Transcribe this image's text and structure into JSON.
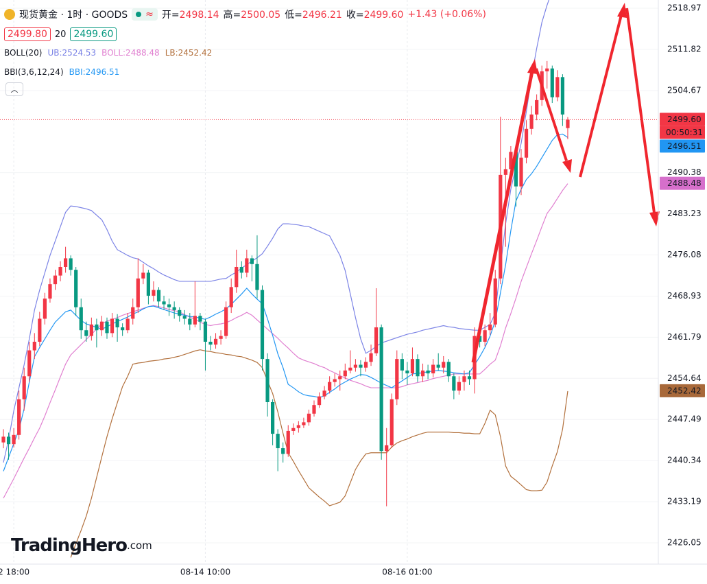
{
  "header": {
    "symbol": "现货黄金 · 1时 · GOODS",
    "ohlc": [
      {
        "label": "开=",
        "value": "2498.14"
      },
      {
        "label": "高=",
        "value": "2500.05"
      },
      {
        "label": "低=",
        "value": "2496.21"
      },
      {
        "label": "收=",
        "value": "2499.60"
      }
    ],
    "change": "+1.43 (+0.06%)",
    "bid": "2499.80",
    "spread": "20",
    "ask": "2499.60",
    "boll_params": "BOLL(20)",
    "bbi_params": "BBI(3,6,12,24)"
  },
  "logo": {
    "brand": "TradingHero",
    "suffix": ".com"
  },
  "chart_data": {
    "type": "candlestick",
    "up_color": "#f23645",
    "down_color": "#089981",
    "ylim": [
      2422.35,
      2520.4
    ],
    "yticks": [
      2518.97,
      2511.82,
      2504.67,
      2490.38,
      2483.23,
      2476.08,
      2468.93,
      2461.79,
      2454.64,
      2447.49,
      2440.34,
      2433.19,
      2426.05
    ],
    "grid": true,
    "categories": [
      null,
      null,
      "2 18:00",
      null,
      null,
      null,
      null,
      null,
      null,
      null,
      null,
      null,
      null,
      null,
      null,
      null,
      null,
      null,
      null,
      null,
      null,
      null,
      null,
      null,
      null,
      null,
      null,
      null,
      null,
      null,
      null,
      null,
      null,
      null,
      null,
      null,
      null,
      null,
      null,
      "08-14 10:00",
      null,
      null,
      null,
      null,
      null,
      null,
      null,
      null,
      null,
      null,
      null,
      null,
      null,
      null,
      null,
      null,
      null,
      null,
      null,
      null,
      null,
      null,
      null,
      null,
      null,
      null,
      null,
      null,
      null,
      null,
      null,
      null,
      null,
      null,
      null,
      null,
      null,
      null,
      "08-16 01:00",
      null,
      null,
      null,
      null,
      null,
      null,
      null,
      null,
      null,
      null,
      null,
      null,
      null,
      null,
      null,
      null,
      null,
      null,
      null,
      null,
      null,
      null,
      null,
      null,
      null,
      null,
      null,
      null,
      null,
      null,
      null
    ],
    "candles": [
      [
        2443.5,
        2445.8,
        2442.5,
        2444.5
      ],
      [
        2444.5,
        2445.2,
        2440.5,
        2443.2
      ],
      [
        2443.2,
        2446,
        2442.6,
        2444.8
      ],
      [
        2444.8,
        2452.5,
        2444,
        2451
      ],
      [
        2451,
        2456.5,
        2449,
        2455
      ],
      [
        2455,
        2461,
        2454,
        2459.5
      ],
      [
        2459.5,
        2462.5,
        2458,
        2461
      ],
      [
        2461,
        2466.2,
        2460.2,
        2465
      ],
      [
        2465,
        2469.5,
        2464,
        2468.5
      ],
      [
        2468.5,
        2472,
        2467.8,
        2471
      ],
      [
        2471,
        2473.5,
        2470,
        2472.5
      ],
      [
        2472.5,
        2475,
        2471.5,
        2474
      ],
      [
        2474,
        2477.5,
        2473,
        2475.5
      ],
      [
        2475.5,
        2476,
        2472.5,
        2473.5
      ],
      [
        2473.5,
        2474,
        2465.5,
        2467
      ],
      [
        2467,
        2468.5,
        2461.5,
        2463
      ],
      [
        2463,
        2464.5,
        2461,
        2462
      ],
      [
        2462,
        2465.2,
        2461.2,
        2464
      ],
      [
        2464,
        2465,
        2460,
        2463
      ],
      [
        2463,
        2465.5,
        2462,
        2464.5
      ],
      [
        2464.5,
        2465.2,
        2461.5,
        2462.5
      ],
      [
        2462.5,
        2466,
        2461.8,
        2465
      ],
      [
        2465,
        2465.8,
        2461,
        2463.5
      ],
      [
        2463.5,
        2464.2,
        2462,
        2463
      ],
      [
        2463,
        2466,
        2462.5,
        2465
      ],
      [
        2465,
        2468.5,
        2464,
        2467
      ],
      [
        2467,
        2475.5,
        2466,
        2472
      ],
      [
        2472,
        2474.5,
        2471,
        2473
      ],
      [
        2473,
        2473.5,
        2467.5,
        2469
      ],
      [
        2469,
        2471.5,
        2468,
        2470
      ],
      [
        2470,
        2470.5,
        2467,
        2468
      ],
      [
        2468,
        2469,
        2466.5,
        2467.5
      ],
      [
        2467.5,
        2468.5,
        2465.5,
        2467
      ],
      [
        2467,
        2468,
        2465,
        2466.5
      ],
      [
        2466.5,
        2467,
        2464.5,
        2465.5
      ],
      [
        2465.5,
        2466.5,
        2464,
        2465
      ],
      [
        2465,
        2466,
        2463,
        2464
      ],
      [
        2464,
        2471.5,
        2463.5,
        2465.5
      ],
      [
        2465.5,
        2466,
        2463,
        2464.5
      ],
      [
        2464.5,
        2465,
        2456,
        2461
      ],
      [
        2461,
        2462,
        2459.5,
        2460.5
      ],
      [
        2460.5,
        2462.5,
        2459.8,
        2461.5
      ],
      [
        2461.5,
        2463,
        2460.5,
        2462
      ],
      [
        2462,
        2468,
        2461.5,
        2467
      ],
      [
        2467,
        2472,
        2466,
        2470.5
      ],
      [
        2470.5,
        2477,
        2469.5,
        2474
      ],
      [
        2474,
        2475,
        2472,
        2473
      ],
      [
        2473,
        2477,
        2472.2,
        2475.5
      ],
      [
        2475.5,
        2476,
        2471.5,
        2474.5
      ],
      [
        2474.5,
        2479.5,
        2468.5,
        2470
      ],
      [
        2470,
        2470.8,
        2456,
        2458
      ],
      [
        2458,
        2459,
        2448,
        2450.5
      ],
      [
        2450.5,
        2451,
        2443,
        2445
      ],
      [
        2445,
        2445.8,
        2438.5,
        2442.5
      ],
      [
        2442.5,
        2443.5,
        2440,
        2441.5
      ],
      [
        2441.5,
        2446.5,
        2441,
        2445.5
      ],
      [
        2445.5,
        2446.8,
        2444.8,
        2446
      ],
      [
        2446,
        2447.2,
        2445.2,
        2446.5
      ],
      [
        2446.5,
        2447.8,
        2446,
        2447
      ],
      [
        2447,
        2449.2,
        2446.4,
        2448.5
      ],
      [
        2448.5,
        2450.8,
        2448,
        2450
      ],
      [
        2450,
        2452.2,
        2449.5,
        2451.5
      ],
      [
        2451.5,
        2453.3,
        2451,
        2452.5
      ],
      [
        2452.5,
        2455,
        2452,
        2454
      ],
      [
        2454,
        2455.5,
        2453.2,
        2454.5
      ],
      [
        2454.5,
        2456,
        2452.5,
        2455
      ],
      [
        2455,
        2457.2,
        2454.5,
        2456
      ],
      [
        2456,
        2459.5,
        2455.5,
        2456.5
      ],
      [
        2456.5,
        2458,
        2455.8,
        2457
      ],
      [
        2457,
        2457.8,
        2455,
        2456.5
      ],
      [
        2456.5,
        2458.3,
        2455.8,
        2457.5
      ],
      [
        2457.5,
        2460.5,
        2456.8,
        2459
      ],
      [
        2459,
        2470.3,
        2458.5,
        2463.5
      ],
      [
        2463.5,
        2464,
        2440.5,
        2442
      ],
      [
        2442,
        2446,
        2432.4,
        2443
      ],
      [
        2443,
        2452,
        2442.5,
        2451
      ],
      [
        2451,
        2459.5,
        2450,
        2458
      ],
      [
        2458,
        2459,
        2454.5,
        2456
      ],
      [
        2456,
        2457.5,
        2453.5,
        2455.5
      ],
      [
        2455.5,
        2460,
        2455,
        2458
      ],
      [
        2458,
        2458.8,
        2454,
        2455
      ],
      [
        2455,
        2457.2,
        2454,
        2456
      ],
      [
        2456,
        2457,
        2454.5,
        2455.5
      ],
      [
        2455.5,
        2458,
        2454.8,
        2457
      ],
      [
        2457,
        2459,
        2456,
        2456.5
      ],
      [
        2456.5,
        2458.5,
        2455.5,
        2457.5
      ],
      [
        2457.5,
        2458,
        2454,
        2455
      ],
      [
        2455,
        2455.5,
        2451,
        2452.5
      ],
      [
        2452.5,
        2455,
        2451.8,
        2454
      ],
      [
        2454,
        2456,
        2452.5,
        2455
      ],
      [
        2455,
        2456,
        2453.5,
        2454.5
      ],
      [
        2454.5,
        2463.5,
        2452,
        2462
      ],
      [
        2462,
        2464,
        2460,
        2461
      ],
      [
        2461,
        2464,
        2460.2,
        2463
      ],
      [
        2463,
        2466,
        2462.2,
        2464
      ],
      [
        2464,
        2473.5,
        2463.5,
        2472
      ],
      [
        2472,
        2500.1,
        2471,
        2490
      ],
      [
        2490,
        2493,
        2477.5,
        2491
      ],
      [
        2491,
        2495,
        2488.5,
        2494
      ],
      [
        2494,
        2495,
        2484.5,
        2488
      ],
      [
        2488,
        2494.5,
        2486.5,
        2493
      ],
      [
        2493,
        2499.5,
        2492,
        2498
      ],
      [
        2498,
        2502,
        2497,
        2500.5
      ],
      [
        2500.5,
        2504,
        2499.5,
        2503
      ],
      [
        2503,
        2509,
        2502,
        2508
      ],
      [
        2508,
        2509.8,
        2505,
        2508.5
      ],
      [
        2508.5,
        2509,
        2502.5,
        2503.5
      ],
      [
        2503.5,
        2508.2,
        2502.8,
        2507
      ],
      [
        2507,
        2507.5,
        2498.5,
        2500.5
      ],
      [
        2498.14,
        2500.05,
        2496.21,
        2499.6
      ]
    ],
    "series": [
      {
        "label": "UB:2524.53",
        "color": "#7b83e6",
        "values": [
          2440,
          2444,
          2449,
          2453,
          2457,
          2461.5,
          2466.5,
          2470,
          2473,
          2476,
          2478.5,
          2481,
          2483.5,
          2484.6,
          2484.5,
          2484.3,
          2484.1,
          2483.8,
          2483,
          2482.2,
          2480.5,
          2478.5,
          2477,
          2476.5,
          2476,
          2475.6,
          2475.4,
          2474.8,
          2474.2,
          2473.7,
          2473.1,
          2472.6,
          2472.2,
          2471.8,
          2471.5,
          2471.5,
          2471.5,
          2471.5,
          2471.5,
          2471.5,
          2471.5,
          2471.7,
          2471.9,
          2472,
          2472.6,
          2473.1,
          2473.8,
          2474.4,
          2475,
          2475.6,
          2476.3,
          2477.6,
          2479,
          2480.6,
          2481.5,
          2481.5,
          2481.4,
          2481.3,
          2481.1,
          2481,
          2480.6,
          2480.2,
          2479.8,
          2479.4,
          2477.7,
          2476,
          2473.4,
          2469.3,
          2465.2,
          2461.5,
          2459,
          2459.5,
          2460.2,
          2460.8,
          2461.1,
          2461.4,
          2461.7,
          2462,
          2462.3,
          2462.5,
          2462.7,
          2463,
          2463.2,
          2463.4,
          2463.6,
          2463.8,
          2463.6,
          2463.5,
          2463.3,
          2463.2,
          2463.1,
          2463,
          2463,
          2463.5,
          2464,
          2466,
          2474,
          2481.5,
          2487.5,
          2491.5,
          2495.5,
          2501,
          2507,
          2512,
          2516.5,
          2519.5,
          2522,
          2523.3,
          2524,
          2524.53
        ]
      },
      {
        "label": "BOLL:2488.48",
        "color": "#e07fd0",
        "values": [
          2433.8,
          2435.5,
          2437.2,
          2439,
          2440.8,
          2442.5,
          2444.3,
          2446,
          2448.1,
          2450.4,
          2452.6,
          2454.9,
          2457.1,
          2458.7,
          2459.6,
          2460.5,
          2461.4,
          2462.3,
          2463.2,
          2464.1,
          2464.6,
          2464.9,
          2465.2,
          2465.6,
          2465.9,
          2466.2,
          2466.5,
          2466.8,
          2467.1,
          2467.3,
          2467.1,
          2466.9,
          2466.6,
          2466.4,
          2466.2,
          2465.7,
          2465.3,
          2464.9,
          2464.4,
          2464,
          2463.8,
          2464,
          2464.1,
          2464.3,
          2464.7,
          2465.2,
          2465.6,
          2466.1,
          2465.6,
          2464.8,
          2464,
          2463.2,
          2462.4,
          2461.6,
          2460.7,
          2459.9,
          2459,
          2458.2,
          2457.8,
          2457.5,
          2457.2,
          2456.8,
          2456.5,
          2456,
          2455.6,
          2455.1,
          2454.7,
          2454.3,
          2454,
          2453.7,
          2453.3,
          2453,
          2453,
          2453,
          2453,
          2453,
          2453,
          2453.2,
          2453.5,
          2453.7,
          2453.9,
          2454.1,
          2454.3,
          2454.6,
          2454.8,
          2455,
          2455.2,
          2455.4,
          2455.4,
          2455.4,
          2455.4,
          2455.4,
          2455.4,
          2456.2,
          2457.1,
          2457.8,
          2460.3,
          2463.4,
          2465.9,
          2468.6,
          2471.5,
          2473.9,
          2476.3,
          2478.6,
          2481,
          2483.3,
          2484.5,
          2485.9,
          2487.3,
          2488.48
        ]
      },
      {
        "label": "LB:2452.42",
        "color": "#b2703c",
        "values": [
          null,
          null,
          null,
          null,
          null,
          null,
          null,
          null,
          null,
          null,
          null,
          null,
          null,
          2423.5,
          2425.9,
          2428.2,
          2430.7,
          2433.8,
          2437.4,
          2441,
          2444.5,
          2447.6,
          2450.4,
          2453.2,
          2455,
          2457.1,
          2457.3,
          2457.4,
          2457.6,
          2457.7,
          2457.8,
          2458,
          2458.1,
          2458.3,
          2458.5,
          2458.8,
          2459.1,
          2459.4,
          2459.6,
          2459.4,
          2459.3,
          2459.1,
          2459,
          2458.8,
          2458.7,
          2458.5,
          2458.4,
          2458.1,
          2457.8,
          2457.4,
          2456.5,
          2454.2,
          2452,
          2448.8,
          2445.1,
          2441.7,
          2440.2,
          2438.6,
          2437.1,
          2435.6,
          2434.8,
          2434,
          2433.3,
          2432.5,
          2432.8,
          2433.1,
          2434.2,
          2436.5,
          2438.8,
          2440.3,
          2441.5,
          2441.7,
          2441.7,
          2441.7,
          2441.7,
          2442.7,
          2443.4,
          2443.8,
          2444.1,
          2444.5,
          2444.8,
          2445.1,
          2445.3,
          2445.3,
          2445.3,
          2445.3,
          2445.3,
          2445.2,
          2445.2,
          2445.1,
          2445.1,
          2445,
          2445,
          2446.8,
          2449.1,
          2448.3,
          2444.5,
          2439.4,
          2437.6,
          2436.9,
          2436.1,
          2435.3,
          2435.1,
          2435.1,
          2435.2,
          2436.6,
          2439.4,
          2441.9,
          2445.8,
          2452.42
        ]
      },
      {
        "label": "BBI:2496.51",
        "color": "#2196f3",
        "values": [
          2438.5,
          2440.9,
          2443.3,
          2445.7,
          2449.4,
          2454,
          2458.4,
          2460,
          2461.5,
          2463,
          2464.4,
          2465.3,
          2466.2,
          2466.5,
          2465.6,
          2464.7,
          2464.1,
          2463.8,
          2463.5,
          2463.2,
          2463.6,
          2464.1,
          2464.5,
          2464.9,
          2465.3,
          2465.8,
          2466.2,
          2466.7,
          2467.1,
          2467.2,
          2466.9,
          2466.6,
          2466.3,
          2466,
          2465.8,
          2465.6,
          2465.4,
          2465.3,
          2465.1,
          2464.9,
          2465.3,
          2465.8,
          2466.2,
          2466.7,
          2467.5,
          2468.4,
          2469.3,
          2470.3,
          2469.3,
          2468.4,
          2467.6,
          2465,
          2462.1,
          2458.9,
          2456.5,
          2453.6,
          2453,
          2452.3,
          2451.8,
          2451.6,
          2451.5,
          2451.3,
          2451.6,
          2452.2,
          2452.8,
          2453.5,
          2454,
          2454.5,
          2454.9,
          2455.3,
          2455.2,
          2454.8,
          2454.3,
          2453.8,
          2453.4,
          2453,
          2453.6,
          2454.2,
          2454.8,
          2455.4,
          2455.5,
          2455.6,
          2455.8,
          2455.9,
          2456,
          2455.9,
          2455.8,
          2455.6,
          2455.5,
          2455.4,
          2455.6,
          2457,
          2458.4,
          2460,
          2462,
          2464.6,
          2469.5,
          2474.4,
          2480.3,
          2485.5,
          2487.5,
          2489.2,
          2490.2,
          2491.5,
          2493,
          2494.5,
          2496,
          2497,
          2497.1,
          2496.51
        ]
      }
    ],
    "price_tags": [
      {
        "value": 2499.6,
        "label": "2499.60",
        "color": "#f23645",
        "timer": "00:50:31"
      },
      {
        "value": 2496.51,
        "label": "2496.51",
        "color": "#2196f3"
      },
      {
        "value": 2488.48,
        "label": "2488.48",
        "color": "#d66fcb"
      },
      {
        "value": 2452.42,
        "label": "2452.42",
        "color": "#a8693a"
      }
    ]
  }
}
